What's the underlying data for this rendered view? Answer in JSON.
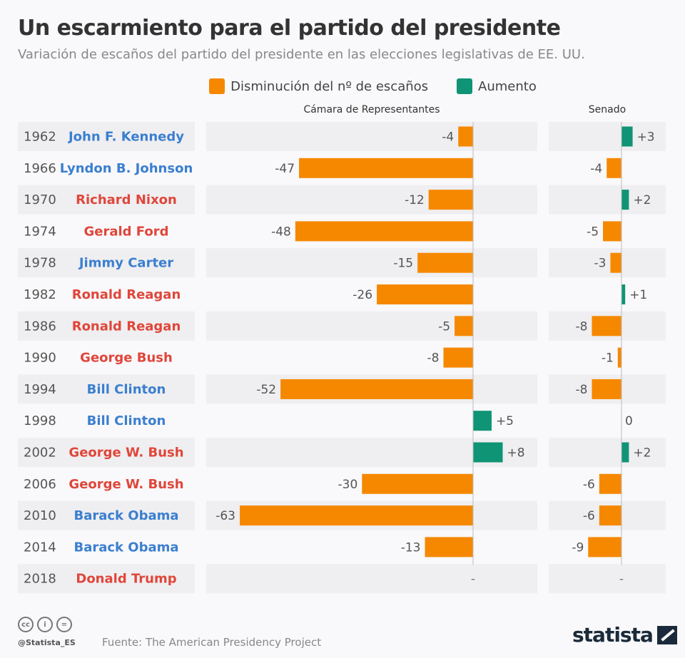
{
  "chart_data": {
    "type": "bar",
    "title": "Un escarmiento para el partido del presidente",
    "subtitle": "Variación de escaños del partido del presidente en las elecciones legislativas de EE. UU.",
    "legend": [
      {
        "label": "Disminución del nº de escaños",
        "color": "#f68800"
      },
      {
        "label": "Aumento",
        "color": "#0f9475"
      }
    ],
    "panels": [
      "Cámara de Representantes",
      "Senado"
    ],
    "party_colors": {
      "D": "#3a7fd0",
      "R": "#e0463a"
    },
    "rows": [
      {
        "year": "1962",
        "president": "John F. Kennedy",
        "party": "D",
        "house": -4,
        "senate": 3
      },
      {
        "year": "1966",
        "president": "Lyndon B. Johnson",
        "party": "D",
        "house": -47,
        "senate": -4
      },
      {
        "year": "1970",
        "president": "Richard Nixon",
        "party": "R",
        "house": -12,
        "senate": 2
      },
      {
        "year": "1974",
        "president": "Gerald Ford",
        "party": "R",
        "house": -48,
        "senate": -5
      },
      {
        "year": "1978",
        "president": "Jimmy Carter",
        "party": "D",
        "house": -15,
        "senate": -3
      },
      {
        "year": "1982",
        "president": "Ronald Reagan",
        "party": "R",
        "house": -26,
        "senate": 1
      },
      {
        "year": "1986",
        "president": "Ronald Reagan",
        "party": "R",
        "house": -5,
        "senate": -8
      },
      {
        "year": "1990",
        "president": "George Bush",
        "party": "R",
        "house": -8,
        "senate": -1
      },
      {
        "year": "1994",
        "president": "Bill Clinton",
        "party": "D",
        "house": -52,
        "senate": -8
      },
      {
        "year": "1998",
        "president": "Bill Clinton",
        "party": "D",
        "house": 5,
        "senate": 0
      },
      {
        "year": "2002",
        "president": "George W. Bush",
        "party": "R",
        "house": 8,
        "senate": 2
      },
      {
        "year": "2006",
        "president": "George W. Bush",
        "party": "R",
        "house": -30,
        "senate": -6
      },
      {
        "year": "2010",
        "president": "Barack Obama",
        "party": "D",
        "house": -63,
        "senate": -6
      },
      {
        "year": "2014",
        "president": "Barack Obama",
        "party": "D",
        "house": -13,
        "senate": -9
      },
      {
        "year": "2018",
        "president": "Donald Trump",
        "party": "R",
        "house": null,
        "senate": null
      }
    ],
    "missing_label": "-"
  },
  "footer": {
    "source": "Fuente: The American Presidency Project",
    "handle": "@Statista_ES",
    "logo": "statista",
    "cc": [
      "cc",
      "i",
      "="
    ]
  }
}
